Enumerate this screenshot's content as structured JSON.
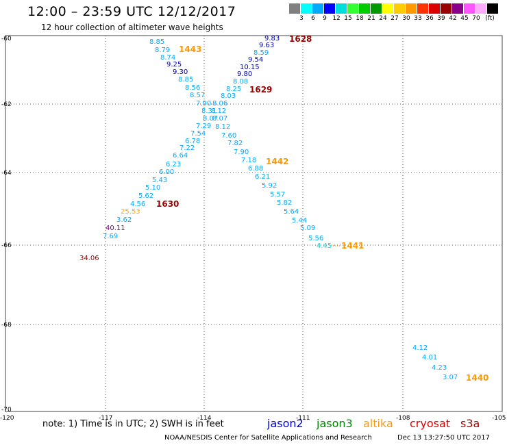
{
  "header": {
    "title": "12:00 – 23:59 UTC 12/12/2017",
    "subtitle": "12 hour collection of altimeter wave heights"
  },
  "legend": {
    "unit": "(ft)",
    "colors": [
      "#808080",
      "#00ffff",
      "#00aaff",
      "#0000ff",
      "#00dddd",
      "#33ff33",
      "#00cc00",
      "#009900",
      "#ffff00",
      "#ffcc00",
      "#ff9900",
      "#ff3300",
      "#dd0000",
      "#990000",
      "#880088",
      "#ff55ff",
      "#ffaaff",
      "#000000"
    ],
    "labels": [
      "3",
      "6",
      "9",
      "12",
      "15",
      "18",
      "21",
      "24",
      "27",
      "30",
      "33",
      "36",
      "39",
      "42",
      "45",
      "70"
    ]
  },
  "grid": {
    "lat_labels": [
      "-60",
      "-62",
      "-64",
      "-66",
      "-68",
      "-70"
    ],
    "lon_labels": [
      "-120",
      "-117",
      "-114",
      "-111",
      "-108",
      "-105"
    ]
  },
  "satellites": [
    {
      "name": "jason2",
      "color": "#0000cc"
    },
    {
      "name": "jason3",
      "color": "#008800"
    },
    {
      "name": "altika",
      "color": "#ff9900"
    },
    {
      "name": "cryosat",
      "color": "#dd0000"
    },
    {
      "name": "s3a",
      "color": "#990000"
    }
  ],
  "note": "note:  1) Time is in UTC;  2) SWH is in feet",
  "footer": {
    "agency": "NOAA/NESDIS Center for Satellite Applications and Research",
    "timestamp": "Dec 13 13:27:50 UTC 2017"
  },
  "pass_labels": [
    {
      "text": "1628",
      "color": "#990000"
    },
    {
      "text": "1443",
      "color": "#ff9900"
    },
    {
      "text": "1629",
      "color": "#990000"
    },
    {
      "text": "1442",
      "color": "#ff9900"
    },
    {
      "text": "1630",
      "color": "#990000"
    },
    {
      "text": "1441",
      "color": "#ff9900"
    },
    {
      "text": "1440",
      "color": "#ff9900"
    }
  ],
  "observations": [
    {
      "v": "9.83",
      "c": "#0000aa"
    },
    {
      "v": "9.63",
      "c": "#0000aa"
    },
    {
      "v": "8.59",
      "c": "#00aaff"
    },
    {
      "v": "9.54",
      "c": "#0000aa"
    },
    {
      "v": "10.15",
      "c": "#0000aa"
    },
    {
      "v": "9.80",
      "c": "#0000aa"
    },
    {
      "v": "8.08",
      "c": "#00aaff"
    },
    {
      "v": "8.25",
      "c": "#00aaff"
    },
    {
      "v": "8.03",
      "c": "#00aaff"
    },
    {
      "v": "8.85",
      "c": "#00aaff"
    },
    {
      "v": "8.79",
      "c": "#00aaff"
    },
    {
      "v": "8.74",
      "c": "#00aaff"
    },
    {
      "v": "9.25",
      "c": "#0000aa"
    },
    {
      "v": "9.30",
      "c": "#0000aa"
    },
    {
      "v": "8.85",
      "c": "#00aaff"
    },
    {
      "v": "8.56",
      "c": "#00aaff"
    },
    {
      "v": "8.57",
      "c": "#00aaff"
    },
    {
      "v": "7.90",
      "c": "#00aaff"
    },
    {
      "v": "8.06",
      "c": "#00aaff"
    },
    {
      "v": "8.31",
      "c": "#00aaff"
    },
    {
      "v": "8.12",
      "c": "#00aaff"
    },
    {
      "v": "8.07",
      "c": "#00aaff"
    },
    {
      "v": "8.07",
      "c": "#00aaff"
    },
    {
      "v": "7.29",
      "c": "#00aaff"
    },
    {
      "v": "8.12",
      "c": "#00aaff"
    },
    {
      "v": "7.54",
      "c": "#00aaff"
    },
    {
      "v": "7.60",
      "c": "#00aaff"
    },
    {
      "v": "6.78",
      "c": "#00aaff"
    },
    {
      "v": "7.82",
      "c": "#00aaff"
    },
    {
      "v": "7.22",
      "c": "#00aaff"
    },
    {
      "v": "7.90",
      "c": "#00aaff"
    },
    {
      "v": "6.64",
      "c": "#00aaff"
    },
    {
      "v": "7.18",
      "c": "#00aaff"
    },
    {
      "v": "6.23",
      "c": "#00aaff"
    },
    {
      "v": "6.88",
      "c": "#00aaff"
    },
    {
      "v": "6.00",
      "c": "#00aaff"
    },
    {
      "v": "6.21",
      "c": "#00aaff"
    },
    {
      "v": "5.43",
      "c": "#00aaff"
    },
    {
      "v": "5.92",
      "c": "#00aaff"
    },
    {
      "v": "5.10",
      "c": "#00aaff"
    },
    {
      "v": "5.57",
      "c": "#00aaff"
    },
    {
      "v": "5.62",
      "c": "#00aaff"
    },
    {
      "v": "5.82",
      "c": "#00aaff"
    },
    {
      "v": "4.56",
      "c": "#00aaff"
    },
    {
      "v": "5.64",
      "c": "#00aaff"
    },
    {
      "v": "25.53",
      "c": "#ffaa00"
    },
    {
      "v": "5.44",
      "c": "#00aaff"
    },
    {
      "v": "3.62",
      "c": "#00aaff"
    },
    {
      "v": "5.09",
      "c": "#00aaff"
    },
    {
      "v": "40.11",
      "c": "#880088"
    },
    {
      "v": "5.56",
      "c": "#00aaff"
    },
    {
      "v": "7.69",
      "c": "#00aaff"
    },
    {
      "v": "4.45",
      "c": "#00dddd"
    },
    {
      "v": "34.06",
      "c": "#990000"
    },
    {
      "v": "4.12",
      "c": "#00aaff"
    },
    {
      "v": "4.01",
      "c": "#00aaff"
    },
    {
      "v": "4.23",
      "c": "#00aaff"
    },
    {
      "v": "3.07",
      "c": "#00aaff"
    }
  ]
}
